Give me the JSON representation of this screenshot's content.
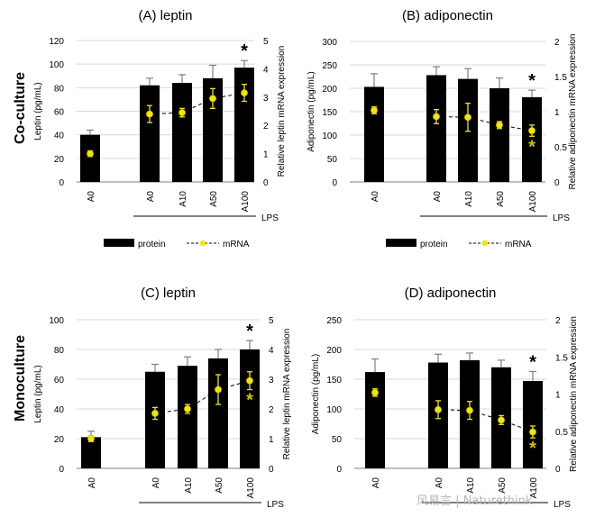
{
  "figure": {
    "row_labels": [
      "Co-culture",
      "Monoculture"
    ],
    "watermark": "风易言 | Naturethink",
    "legend": {
      "protein": "protein",
      "mrna": "mRNA"
    },
    "colors": {
      "bar": "#000000",
      "mrna_point": "#f2e600",
      "line": "#000000",
      "axis": "#7f7f7f",
      "grid": "#d9d9d9"
    }
  },
  "chart_data": [
    {
      "type": "bar",
      "title": "(A) leptin",
      "ylabel": "Leptin (pg/mL)",
      "y2label": "Relative leptin mRNA expression",
      "categories": [
        "A0",
        "A0",
        "A10",
        "A50",
        "A100"
      ],
      "group_label": "LPS",
      "ylim": [
        0,
        120
      ],
      "yticks": [
        0,
        20,
        40,
        60,
        80,
        100,
        120
      ],
      "y2lim": [
        0,
        5
      ],
      "y2ticks": [
        0,
        1,
        2,
        3,
        4,
        5
      ],
      "series": [
        {
          "name": "protein",
          "type": "bar",
          "values": [
            40,
            82,
            84,
            88,
            97
          ],
          "errors": [
            4,
            6,
            7,
            11,
            6
          ]
        },
        {
          "name": "mRNA",
          "type": "line",
          "axis": "secondary",
          "values": [
            1.0,
            2.4,
            2.45,
            2.95,
            3.15
          ],
          "errors": [
            0.1,
            0.3,
            0.15,
            0.35,
            0.3
          ]
        }
      ],
      "annotations": [
        {
          "text": "*",
          "category_index": 4,
          "series": "protein"
        }
      ]
    },
    {
      "type": "bar",
      "title": "(B) adiponectin",
      "ylabel": "Adiponectin (pg/mL)",
      "y2label": "Relative adiponectin mRNA expression",
      "categories": [
        "A0",
        "A0",
        "A10",
        "A50",
        "A100"
      ],
      "group_label": "LPS",
      "ylim": [
        0,
        300
      ],
      "yticks": [
        0,
        50,
        100,
        150,
        200,
        250,
        300
      ],
      "y2lim": [
        0,
        2
      ],
      "y2ticks": [
        0,
        0.5,
        1,
        1.5,
        2
      ],
      "series": [
        {
          "name": "protein",
          "type": "bar",
          "values": [
            203,
            228,
            220,
            200,
            181
          ],
          "errors": [
            28,
            18,
            22,
            22,
            15
          ]
        },
        {
          "name": "mRNA",
          "type": "line",
          "axis": "secondary",
          "values": [
            1.02,
            0.93,
            0.92,
            0.81,
            0.73
          ],
          "errors": [
            0.05,
            0.1,
            0.2,
            0.05,
            0.08
          ]
        }
      ],
      "annotations": [
        {
          "text": "*",
          "category_index": 4,
          "series": "protein"
        },
        {
          "text": "*",
          "category_index": 4,
          "series": "mRNA",
          "color": "#d4c000"
        }
      ]
    },
    {
      "type": "bar",
      "title": "(C) leptin",
      "ylabel": "Leptin (pg/mL)",
      "y2label": "Relative leptin mRNA expression",
      "categories": [
        "A0",
        "A0",
        "A10",
        "A50",
        "A100"
      ],
      "group_label": "LPS",
      "ylim": [
        0,
        100
      ],
      "yticks": [
        0,
        20,
        40,
        60,
        80,
        100
      ],
      "y2lim": [
        0,
        5
      ],
      "y2ticks": [
        0,
        1,
        2,
        3,
        4,
        5
      ],
      "series": [
        {
          "name": "protein",
          "type": "bar",
          "values": [
            21,
            65,
            69,
            74,
            80
          ],
          "errors": [
            4,
            5,
            6,
            6,
            6
          ]
        },
        {
          "name": "mRNA",
          "type": "line",
          "axis": "secondary",
          "values": [
            1.0,
            1.85,
            2.0,
            2.65,
            2.95
          ],
          "errors": [
            0.1,
            0.2,
            0.15,
            0.5,
            0.3
          ]
        }
      ],
      "annotations": [
        {
          "text": "*",
          "category_index": 4,
          "series": "protein"
        },
        {
          "text": "*",
          "category_index": 4,
          "series": "mRNA",
          "color": "#d4c000"
        }
      ]
    },
    {
      "type": "bar",
      "title": "(D) adiponectin",
      "ylabel": "Adiponectin (pg/mL)",
      "y2label": "Relative adiponectin mRNA expression",
      "categories": [
        "A0",
        "A0",
        "A10",
        "A50",
        "A100"
      ],
      "group_label": "LPS",
      "ylim": [
        0,
        250
      ],
      "yticks": [
        0,
        50,
        100,
        150,
        200,
        250
      ],
      "y2lim": [
        0,
        2
      ],
      "y2ticks": [
        0,
        0.5,
        1,
        1.5,
        2
      ],
      "series": [
        {
          "name": "protein",
          "type": "bar",
          "values": [
            162,
            178,
            182,
            170,
            147
          ],
          "errors": [
            22,
            14,
            12,
            12,
            16
          ]
        },
        {
          "name": "mRNA",
          "type": "line",
          "axis": "secondary",
          "values": [
            1.02,
            0.79,
            0.78,
            0.65,
            0.49
          ],
          "errors": [
            0.05,
            0.12,
            0.12,
            0.06,
            0.08
          ]
        }
      ],
      "annotations": [
        {
          "text": "*",
          "category_index": 4,
          "series": "protein"
        },
        {
          "text": "*",
          "category_index": 4,
          "series": "mRNA",
          "color": "#d4c000"
        }
      ]
    }
  ]
}
